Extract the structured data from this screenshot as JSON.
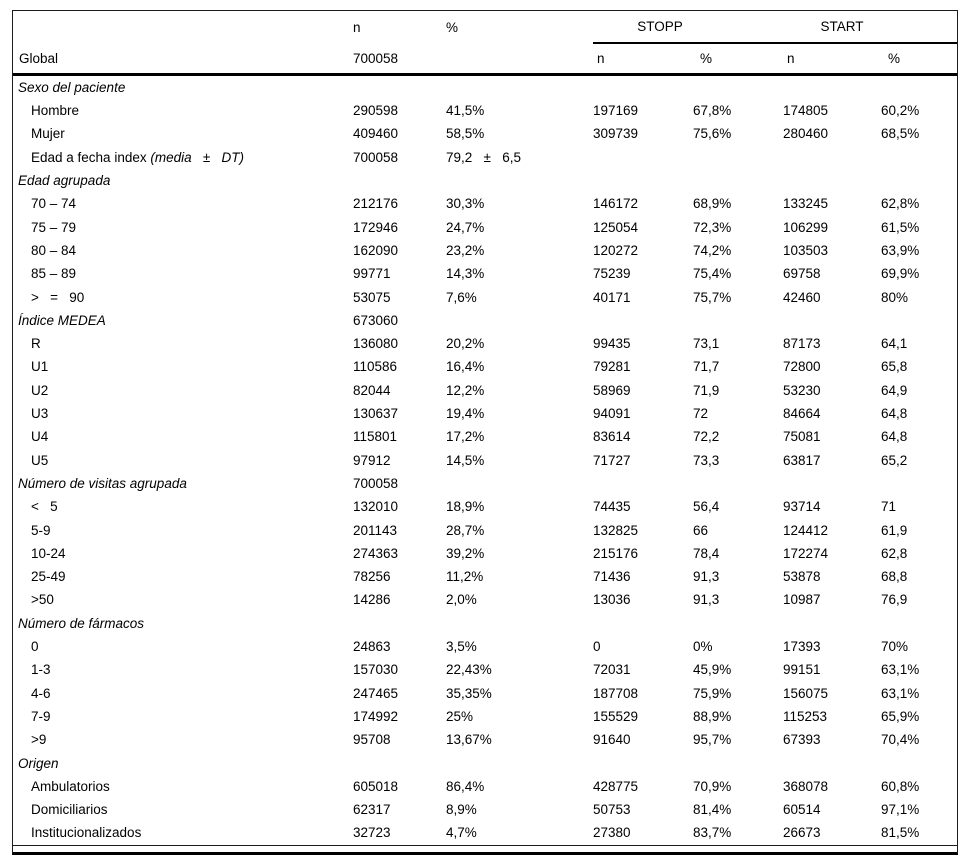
{
  "header": {
    "col_n": "n",
    "col_pct": "%",
    "stopp": "STOPP",
    "start": "START",
    "row2": {
      "label": "Global",
      "n": "700058",
      "pct": "",
      "stopp_n": "n",
      "stopp_pct": "%",
      "start_n": "n",
      "start_pct": "%"
    }
  },
  "colors": {
    "text": "#000000",
    "rule": "#000000",
    "background": "#ffffff"
  },
  "rows": [
    {
      "type": "section",
      "label": "Sexo del paciente",
      "n": "",
      "pct": "",
      "stopp_n": "",
      "stopp_pct": "",
      "start_n": "",
      "start_pct": ""
    },
    {
      "type": "item",
      "label": "Hombre",
      "n": "290598",
      "pct": "41,5%",
      "stopp_n": "197169",
      "stopp_pct": "67,8%",
      "start_n": "174805",
      "start_pct": "60,2%"
    },
    {
      "type": "item",
      "label": "Mujer",
      "n": "409460",
      "pct": "58,5%",
      "stopp_n": "309739",
      "stopp_pct": "75,6%",
      "start_n": "280460",
      "start_pct": "68,5%"
    },
    {
      "type": "item",
      "label": "Edad a fecha index ",
      "label_italic": "(media   ±   DT)",
      "n": "700058",
      "pct": "79,2   ±   6,5",
      "stopp_n": "",
      "stopp_pct": "",
      "start_n": "",
      "start_pct": ""
    },
    {
      "type": "section",
      "label": "Edad agrupada",
      "n": "",
      "pct": "",
      "stopp_n": "",
      "stopp_pct": "",
      "start_n": "",
      "start_pct": ""
    },
    {
      "type": "item",
      "label": "70 – 74",
      "n": "212176",
      "pct": "30,3%",
      "stopp_n": "146172",
      "stopp_pct": "68,9%",
      "start_n": "133245",
      "start_pct": "62,8%"
    },
    {
      "type": "item",
      "label": "75 – 79",
      "n": "172946",
      "pct": "24,7%",
      "stopp_n": "125054",
      "stopp_pct": "72,3%",
      "start_n": "106299",
      "start_pct": "61,5%"
    },
    {
      "type": "item",
      "label": "80 – 84",
      "n": "162090",
      "pct": "23,2%",
      "stopp_n": "120272",
      "stopp_pct": "74,2%",
      "start_n": "103503",
      "start_pct": "63,9%"
    },
    {
      "type": "item",
      "label": "85 – 89",
      "n": "99771",
      "pct": "14,3%",
      "stopp_n": "75239",
      "stopp_pct": "75,4%",
      "start_n": "69758",
      "start_pct": "69,9%"
    },
    {
      "type": "item",
      "label": ">   =   90",
      "n": "53075",
      "pct": "7,6%",
      "stopp_n": "40171",
      "stopp_pct": "75,7%",
      "start_n": "42460",
      "start_pct": "80%"
    },
    {
      "type": "section",
      "label": "Índice MEDEA",
      "n": "673060",
      "pct": "",
      "stopp_n": "",
      "stopp_pct": "",
      "start_n": "",
      "start_pct": ""
    },
    {
      "type": "item",
      "label": "R",
      "n": "136080",
      "pct": "20,2%",
      "stopp_n": "99435",
      "stopp_pct": "73,1",
      "start_n": "87173",
      "start_pct": "64,1"
    },
    {
      "type": "item",
      "label": "U1",
      "n": "110586",
      "pct": "16,4%",
      "stopp_n": "79281",
      "stopp_pct": "71,7",
      "start_n": "72800",
      "start_pct": "65,8"
    },
    {
      "type": "item",
      "label": "U2",
      "n": "82044",
      "pct": "12,2%",
      "stopp_n": "58969",
      "stopp_pct": "71,9",
      "start_n": "53230",
      "start_pct": "64,9"
    },
    {
      "type": "item",
      "label": "U3",
      "n": "130637",
      "pct": "19,4%",
      "stopp_n": "94091",
      "stopp_pct": "72",
      "start_n": "84664",
      "start_pct": "64,8"
    },
    {
      "type": "item",
      "label": "U4",
      "n": "115801",
      "pct": "17,2%",
      "stopp_n": "83614",
      "stopp_pct": "72,2",
      "start_n": "75081",
      "start_pct": "64,8"
    },
    {
      "type": "item",
      "label": "U5",
      "n": "97912",
      "pct": "14,5%",
      "stopp_n": "71727",
      "stopp_pct": "73,3",
      "start_n": "63817",
      "start_pct": "65,2"
    },
    {
      "type": "section",
      "label": "Número de visitas agrupada",
      "n": "700058",
      "pct": "",
      "stopp_n": "",
      "stopp_pct": "",
      "start_n": "",
      "start_pct": ""
    },
    {
      "type": "item",
      "label": "<   5",
      "n": "132010",
      "pct": "18,9%",
      "stopp_n": "74435",
      "stopp_pct": "56,4",
      "start_n": "93714",
      "start_pct": "71"
    },
    {
      "type": "item",
      "label": "5-9",
      "n": "201143",
      "pct": "28,7%",
      "stopp_n": "132825",
      "stopp_pct": "66",
      "start_n": "124412",
      "start_pct": "61,9"
    },
    {
      "type": "item",
      "label": "10-24",
      "n": "274363",
      "pct": "39,2%",
      "stopp_n": "215176",
      "stopp_pct": "78,4",
      "start_n": "172274",
      "start_pct": "62,8"
    },
    {
      "type": "item",
      "label": "25-49",
      "n": "78256",
      "pct": "11,2%",
      "stopp_n": "71436",
      "stopp_pct": "91,3",
      "start_n": "53878",
      "start_pct": "68,8"
    },
    {
      "type": "item",
      "label": ">50",
      "n": "14286",
      "pct": "2,0%",
      "stopp_n": "13036",
      "stopp_pct": "91,3",
      "start_n": "10987",
      "start_pct": "76,9"
    },
    {
      "type": "section",
      "label": "Número de fármacos",
      "n": "",
      "pct": "",
      "stopp_n": "",
      "stopp_pct": "",
      "start_n": "",
      "start_pct": ""
    },
    {
      "type": "item",
      "label": "0",
      "n": "24863",
      "pct": "3,5%",
      "stopp_n": "0",
      "stopp_pct": "0%",
      "start_n": "17393",
      "start_pct": "70%"
    },
    {
      "type": "item",
      "label": "1-3",
      "n": "157030",
      "pct": "22,43%",
      "stopp_n": "72031",
      "stopp_pct": "45,9%",
      "start_n": "99151",
      "start_pct": "63,1%"
    },
    {
      "type": "item",
      "label": "4-6",
      "n": "247465",
      "pct": "35,35%",
      "stopp_n": "187708",
      "stopp_pct": "75,9%",
      "start_n": "156075",
      "start_pct": "63,1%"
    },
    {
      "type": "item",
      "label": "7-9",
      "n": "174992",
      "pct": "25%",
      "stopp_n": "155529",
      "stopp_pct": "88,9%",
      "start_n": "115253",
      "start_pct": "65,9%"
    },
    {
      "type": "item",
      "label": ">9",
      "n": "95708",
      "pct": "13,67%",
      "stopp_n": "91640",
      "stopp_pct": "95,7%",
      "start_n": "67393",
      "start_pct": "70,4%"
    },
    {
      "type": "section",
      "label": "Origen",
      "n": "",
      "pct": "",
      "stopp_n": "",
      "stopp_pct": "",
      "start_n": "",
      "start_pct": ""
    },
    {
      "type": "item",
      "label": "Ambulatorios",
      "n": "605018",
      "pct": "86,4%",
      "stopp_n": "428775",
      "stopp_pct": "70,9%",
      "start_n": "368078",
      "start_pct": "60,8%"
    },
    {
      "type": "item",
      "label": "Domiciliarios",
      "n": "62317",
      "pct": "8,9%",
      "stopp_n": "50753",
      "stopp_pct": "81,4%",
      "start_n": "60514",
      "start_pct": "97,1%"
    },
    {
      "type": "item",
      "label": "Institucionalizados",
      "n": "32723",
      "pct": "4,7%",
      "stopp_n": "27380",
      "stopp_pct": "83,7%",
      "start_n": "26673",
      "start_pct": "81,5%"
    }
  ]
}
